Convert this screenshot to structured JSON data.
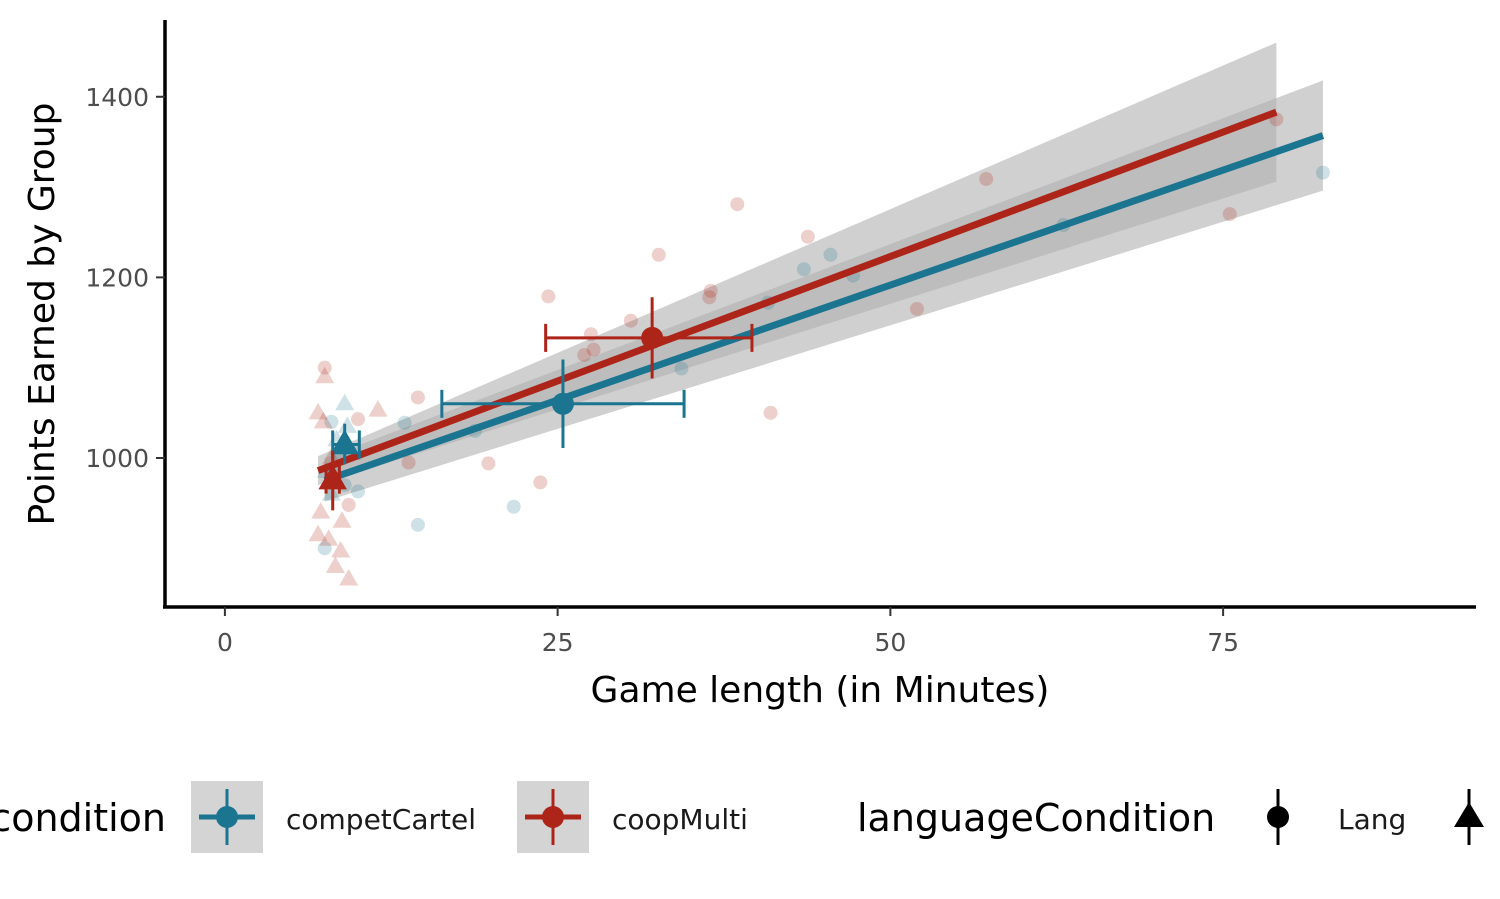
{
  "chart_data": {
    "type": "scatter",
    "title": "",
    "xlabel": "Game length (in Minutes)",
    "ylabel": "Points Earned by Group",
    "xlim": [
      -4.5,
      94
    ],
    "ylim": [
      835,
      1485
    ],
    "x_ticks": [
      0,
      25,
      50,
      75
    ],
    "y_ticks": [
      1000,
      1200,
      1400
    ],
    "x_tick_labels": [
      "0",
      "25",
      "50",
      "75"
    ],
    "y_tick_labels": [
      "1000",
      "1200",
      "1400"
    ],
    "grid": false,
    "legend_position": "bottom",
    "colors": {
      "competCartel": "#1b7591",
      "coopMulti": "#ad2418",
      "ribbon": "#b0b0b0"
    },
    "legend": {
      "color_title": "condition",
      "color_entries": [
        "competCartel",
        "coopMulti"
      ],
      "shape_title": "languageCondition",
      "shape_entries": [
        "Lang",
        ""
      ]
    },
    "series": [
      {
        "name": "competCartel",
        "color": "#1b7591",
        "points": [
          {
            "x": 8,
            "y": 1040,
            "shape": "circle"
          },
          {
            "x": 8.5,
            "y": 1000,
            "shape": "circle"
          },
          {
            "x": 9,
            "y": 970,
            "shape": "circle"
          },
          {
            "x": 10,
            "y": 963,
            "shape": "circle"
          },
          {
            "x": 7.5,
            "y": 900,
            "shape": "circle"
          },
          {
            "x": 8.2,
            "y": 985,
            "shape": "circle"
          },
          {
            "x": 13.5,
            "y": 1039,
            "shape": "circle"
          },
          {
            "x": 14.5,
            "y": 926,
            "shape": "circle"
          },
          {
            "x": 18.8,
            "y": 1030,
            "shape": "circle"
          },
          {
            "x": 21.7,
            "y": 946,
            "shape": "circle"
          },
          {
            "x": 34.3,
            "y": 1099,
            "shape": "circle"
          },
          {
            "x": 43.5,
            "y": 1209,
            "shape": "circle"
          },
          {
            "x": 45.5,
            "y": 1225,
            "shape": "circle"
          },
          {
            "x": 47.2,
            "y": 1202,
            "shape": "circle"
          },
          {
            "x": 40.8,
            "y": 1172,
            "shape": "circle"
          },
          {
            "x": 63,
            "y": 1258,
            "shape": "circle"
          },
          {
            "x": 82.5,
            "y": 1316,
            "shape": "circle"
          },
          {
            "x": 9,
            "y": 1060,
            "shape": "triangle"
          },
          {
            "x": 8.4,
            "y": 1020,
            "shape": "triangle"
          },
          {
            "x": 7.6,
            "y": 985,
            "shape": "triangle"
          },
          {
            "x": 9.5,
            "y": 1005,
            "shape": "triangle"
          },
          {
            "x": 8,
            "y": 960,
            "shape": "triangle"
          },
          {
            "x": 9.2,
            "y": 1035,
            "shape": "triangle"
          }
        ],
        "summary_points": [
          {
            "x": 25.4,
            "y": 1060,
            "x_err": [
              16.3,
              34.5
            ],
            "y_err": [
              1011,
              1109
            ],
            "shape": "circle"
          },
          {
            "x": 9,
            "y": 1015,
            "x_err": [
              8.1,
              10.1
            ],
            "y_err": [
              993,
              1038
            ],
            "shape": "triangle"
          }
        ],
        "fit": {
          "x": [
            7.5,
            82.5
          ],
          "y": [
            975,
            1357
          ],
          "ci_lower": [
            952,
            1296
          ],
          "ci_upper": [
            1000,
            1418
          ]
        }
      },
      {
        "name": "coopMulti",
        "color": "#ad2418",
        "points": [
          {
            "x": 7.5,
            "y": 1100,
            "shape": "circle"
          },
          {
            "x": 10,
            "y": 1043,
            "shape": "circle"
          },
          {
            "x": 9.3,
            "y": 948,
            "shape": "circle"
          },
          {
            "x": 14.5,
            "y": 1067,
            "shape": "circle"
          },
          {
            "x": 13.8,
            "y": 995,
            "shape": "circle"
          },
          {
            "x": 19.8,
            "y": 994,
            "shape": "circle"
          },
          {
            "x": 23.7,
            "y": 973,
            "shape": "circle"
          },
          {
            "x": 24.3,
            "y": 1179,
            "shape": "circle"
          },
          {
            "x": 27.5,
            "y": 1137,
            "shape": "circle"
          },
          {
            "x": 27,
            "y": 1114,
            "shape": "circle"
          },
          {
            "x": 27.7,
            "y": 1120,
            "shape": "circle"
          },
          {
            "x": 30.5,
            "y": 1152,
            "shape": "circle"
          },
          {
            "x": 32.6,
            "y": 1225,
            "shape": "circle"
          },
          {
            "x": 36.5,
            "y": 1185,
            "shape": "circle"
          },
          {
            "x": 36.4,
            "y": 1178,
            "shape": "circle"
          },
          {
            "x": 38.5,
            "y": 1281,
            "shape": "circle"
          },
          {
            "x": 41,
            "y": 1050,
            "shape": "circle"
          },
          {
            "x": 43.8,
            "y": 1245,
            "shape": "circle"
          },
          {
            "x": 52,
            "y": 1165,
            "shape": "circle"
          },
          {
            "x": 57.2,
            "y": 1309,
            "shape": "circle"
          },
          {
            "x": 75.5,
            "y": 1270,
            "shape": "circle"
          },
          {
            "x": 79,
            "y": 1375,
            "shape": "circle"
          },
          {
            "x": 7.5,
            "y": 1090,
            "shape": "triangle"
          },
          {
            "x": 7,
            "y": 1050,
            "shape": "triangle"
          },
          {
            "x": 7.4,
            "y": 1040,
            "shape": "triangle"
          },
          {
            "x": 11.5,
            "y": 1053,
            "shape": "triangle"
          },
          {
            "x": 7.2,
            "y": 940,
            "shape": "triangle"
          },
          {
            "x": 7,
            "y": 915,
            "shape": "triangle"
          },
          {
            "x": 8.8,
            "y": 930,
            "shape": "triangle"
          },
          {
            "x": 7.8,
            "y": 910,
            "shape": "triangle"
          },
          {
            "x": 8.7,
            "y": 897,
            "shape": "triangle"
          },
          {
            "x": 8.3,
            "y": 880,
            "shape": "triangle"
          },
          {
            "x": 9.3,
            "y": 866,
            "shape": "triangle"
          },
          {
            "x": 8,
            "y": 1000,
            "shape": "triangle"
          }
        ],
        "summary_points": [
          {
            "x": 32.1,
            "y": 1133,
            "x_err": [
              24.1,
              39.6
            ],
            "y_err": [
              1088,
              1178
            ],
            "shape": "circle"
          },
          {
            "x": 8.1,
            "y": 976,
            "x_err": [
              7.6,
              8.6
            ],
            "y_err": [
              942,
              1008
            ],
            "shape": "triangle"
          }
        ],
        "fit": {
          "x": [
            7,
            79
          ],
          "y": [
            986,
            1383
          ],
          "ci_lower": [
            970,
            1306
          ],
          "ci_upper": [
            1002,
            1460
          ]
        }
      }
    ]
  }
}
